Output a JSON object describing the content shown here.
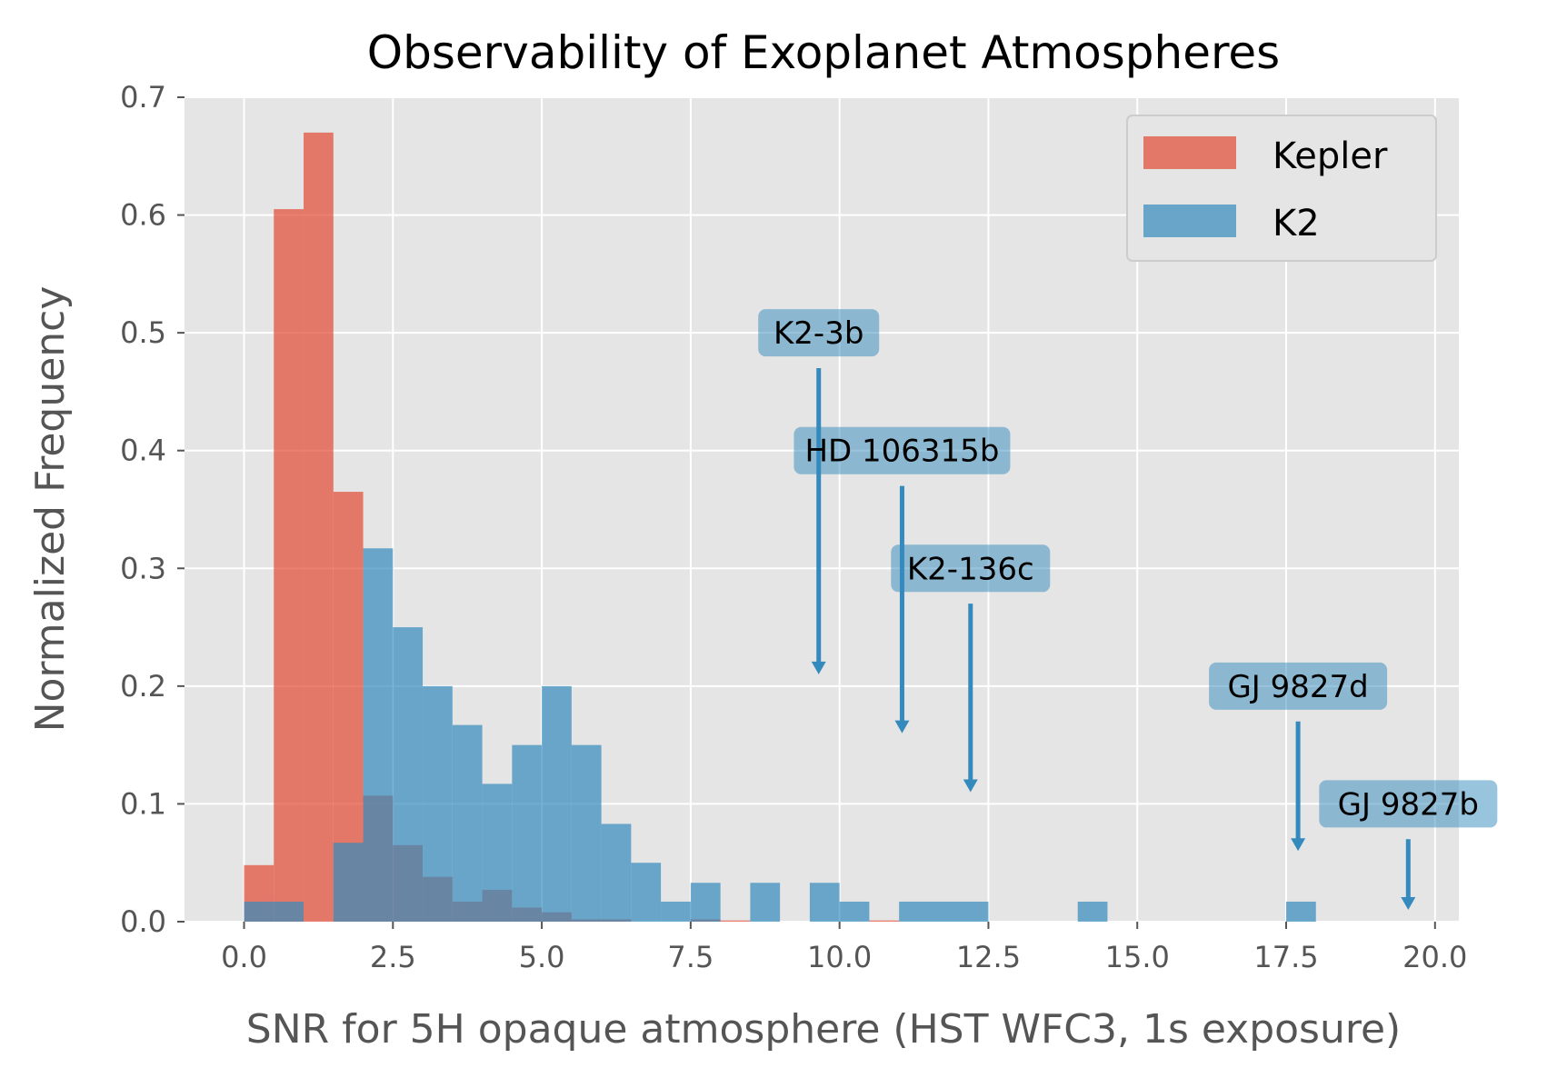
{
  "chart_data": {
    "type": "bar",
    "title": "Observability of Exoplanet Atmospheres",
    "xlabel": "SNR for 5H opaque atmosphere (HST WFC3, 1s exposure)",
    "ylabel": "Normalized Frequency",
    "xlim": [
      -1.0,
      20.4
    ],
    "ylim": [
      0.0,
      0.7
    ],
    "xticks": [
      "0.0",
      "2.5",
      "5.0",
      "7.5",
      "10.0",
      "12.5",
      "15.0",
      "17.5",
      "20.0"
    ],
    "xtick_values": [
      0,
      2.5,
      5,
      7.5,
      10,
      12.5,
      15,
      17.5,
      20
    ],
    "yticks": [
      "0.0",
      "0.1",
      "0.2",
      "0.3",
      "0.4",
      "0.5",
      "0.6",
      "0.7"
    ],
    "ytick_values": [
      0,
      0.1,
      0.2,
      0.3,
      0.4,
      0.5,
      0.6,
      0.7
    ],
    "grid": true,
    "legend_position": "top-right",
    "bin_start": 0.0,
    "bin_width": 0.5,
    "series": [
      {
        "name": "Kepler",
        "color": "#E24A33",
        "values": [
          0.048,
          0.605,
          0.67,
          0.365,
          0.107,
          0.065,
          0.038,
          0.017,
          0.027,
          0.012,
          0.008,
          0.002,
          0.002,
          0.0,
          0.0,
          0.002,
          0.001,
          0.0,
          0.0,
          0.0,
          0.0,
          0.001
        ]
      },
      {
        "name": "K2",
        "color": "#348ABD",
        "values": [
          0.017,
          0.017,
          0.0,
          0.067,
          0.317,
          0.25,
          0.2,
          0.167,
          0.117,
          0.15,
          0.2,
          0.15,
          0.083,
          0.05,
          0.017,
          0.033,
          0.0,
          0.033,
          0.0,
          0.033,
          0.017,
          0.0,
          0.0,
          0.017,
          0.017,
          0.017,
          0.0,
          0.0,
          0.0,
          0.0,
          0.0,
          0.0,
          0.0,
          0.0,
          0.0,
          0.0,
          0.017,
          0.0,
          0.0,
          0.0,
          0.0,
          0.0,
          0.0,
          0.0,
          0.0,
          0.0,
          0.0,
          0.0,
          0.0,
          0.0,
          0.0,
          0.0,
          0.0,
          0.0,
          0.0,
          0.0,
          0.0,
          0.0,
          0.0,
          0.0,
          0.0,
          0.0,
          0.0,
          0.0,
          0.0,
          0.0,
          0.0,
          0.0,
          0.0,
          0.0,
          0.0,
          0.017
        ]
      }
    ],
    "k2_extra_bins": [
      {
        "x0": 7.5,
        "x1": 8.0,
        "value": 0.033
      },
      {
        "x0": 8.5,
        "x1": 9.0,
        "value": 0.033
      },
      {
        "x0": 9.5,
        "x1": 10.0,
        "value": 0.033
      },
      {
        "x0": 10.0,
        "x1": 10.5,
        "value": 0.017
      },
      {
        "x0": 11.0,
        "x1": 12.5,
        "value": 0.017
      },
      {
        "x0": 14.0,
        "x1": 14.5,
        "value": 0.017
      },
      {
        "x0": 17.5,
        "x1": 18.0,
        "value": 0.017
      }
    ],
    "annotations": [
      {
        "text": "K2-3b",
        "label_x": 9.65,
        "label_y": 0.5,
        "arrow_from_y": 0.47,
        "arrow_to_y": 0.21
      },
      {
        "text": "HD 106315b",
        "label_x": 11.05,
        "label_y": 0.4,
        "arrow_from_y": 0.37,
        "arrow_to_y": 0.16
      },
      {
        "text": "K2-136c",
        "label_x": 12.2,
        "label_y": 0.3,
        "arrow_from_y": 0.27,
        "arrow_to_y": 0.11
      },
      {
        "text": "GJ 9827d",
        "label_x": 17.7,
        "label_y": 0.2,
        "arrow_from_y": 0.17,
        "arrow_to_y": 0.06
      },
      {
        "text": "GJ 9827b",
        "label_x": 19.55,
        "label_y": 0.1,
        "arrow_from_y": 0.07,
        "arrow_to_y": 0.01
      }
    ]
  }
}
